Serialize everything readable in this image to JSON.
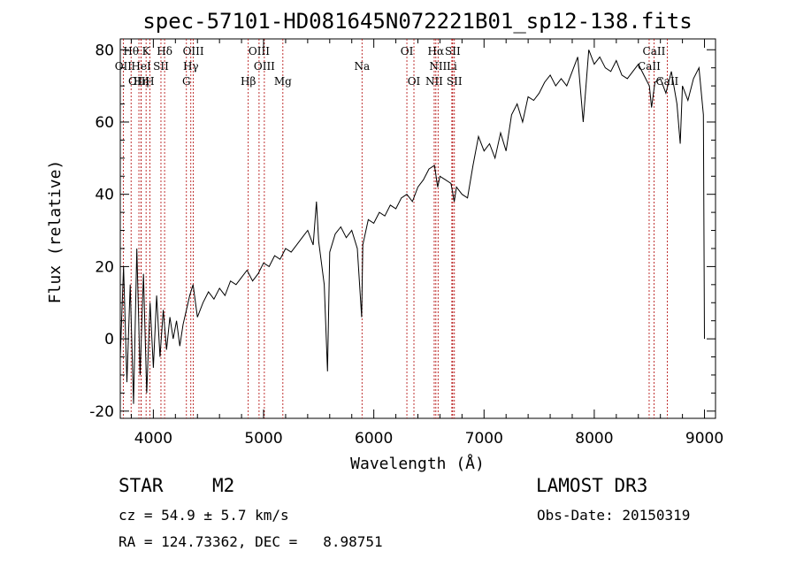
{
  "chart_data": {
    "type": "line",
    "title": "spec-57101-HD081645N072221B01_sp12-138.fits",
    "xlabel": "Wavelength (Å)",
    "ylabel": "Flux (relative)",
    "xlim": [
      3700,
      9100
    ],
    "ylim": [
      -22,
      83
    ],
    "xticks": [
      4000,
      5000,
      6000,
      7000,
      8000,
      9000
    ],
    "yticks": [
      -20,
      0,
      20,
      40,
      60,
      80
    ],
    "series": [
      {
        "name": "flux",
        "x": [
          3700,
          3730,
          3760,
          3790,
          3820,
          3850,
          3880,
          3910,
          3940,
          3970,
          4000,
          4030,
          4060,
          4090,
          4120,
          4150,
          4180,
          4210,
          4240,
          4270,
          4300,
          4330,
          4360,
          4400,
          4450,
          4500,
          4550,
          4600,
          4650,
          4700,
          4750,
          4800,
          4850,
          4900,
          4950,
          5000,
          5050,
          5100,
          5150,
          5200,
          5250,
          5300,
          5350,
          5400,
          5450,
          5480,
          5500,
          5550,
          5580,
          5600,
          5650,
          5700,
          5750,
          5800,
          5850,
          5890,
          5900,
          5950,
          6000,
          6050,
          6100,
          6150,
          6200,
          6250,
          6300,
          6350,
          6400,
          6450,
          6500,
          6550,
          6580,
          6600,
          6650,
          6700,
          6730,
          6750,
          6800,
          6850,
          6900,
          6950,
          7000,
          7050,
          7100,
          7150,
          7200,
          7250,
          7300,
          7350,
          7400,
          7450,
          7500,
          7550,
          7600,
          7650,
          7700,
          7750,
          7800,
          7850,
          7900,
          7950,
          8000,
          8050,
          8100,
          8150,
          8200,
          8250,
          8300,
          8350,
          8400,
          8450,
          8500,
          8520,
          8550,
          8600,
          8650,
          8700,
          8750,
          8780,
          8800,
          8850,
          8900,
          8950,
          8990,
          9000
        ],
        "y": [
          -5,
          20,
          -12,
          15,
          -18,
          25,
          -10,
          18,
          -15,
          10,
          -8,
          12,
          -5,
          8,
          -3,
          6,
          0,
          5,
          -2,
          4,
          8,
          12,
          15,
          6,
          10,
          13,
          11,
          14,
          12,
          16,
          15,
          17,
          19,
          16,
          18,
          21,
          20,
          23,
          22,
          25,
          24,
          26,
          28,
          30,
          26,
          38,
          27,
          15,
          -9,
          24,
          29,
          31,
          28,
          30,
          25,
          6,
          26,
          33,
          32,
          35,
          34,
          37,
          36,
          39,
          40,
          38,
          42,
          44,
          47,
          48,
          42,
          45,
          44,
          43,
          38,
          42,
          40,
          39,
          48,
          56,
          52,
          54,
          50,
          57,
          52,
          62,
          65,
          60,
          67,
          66,
          68,
          71,
          73,
          70,
          72,
          70,
          74,
          78,
          60,
          80,
          76,
          78,
          75,
          74,
          77,
          73,
          72,
          74,
          76,
          73,
          70,
          64,
          71,
          72,
          68,
          74,
          65,
          54,
          70,
          66,
          72,
          75,
          62,
          0
        ]
      }
    ],
    "spectral_lines": [
      {
        "label": "Hθ",
        "wavelength": 3798,
        "row": 0
      },
      {
        "label": "K",
        "wavelength": 3934,
        "row": 0
      },
      {
        "label": "Hδ",
        "wavelength": 4102,
        "row": 0
      },
      {
        "label": "OIII",
        "wavelength": 4363,
        "row": 0
      },
      {
        "label": "OIII",
        "wavelength": 4959,
        "row": 0
      },
      {
        "label": "OI",
        "wavelength": 6300,
        "row": 0
      },
      {
        "label": "Hα",
        "wavelength": 6563,
        "row": 0
      },
      {
        "label": "SII",
        "wavelength": 6716,
        "row": 0
      },
      {
        "label": "CaII",
        "wavelength": 8542,
        "row": 0
      },
      {
        "label": "OII",
        "wavelength": 3727,
        "row": 1
      },
      {
        "label": "HeI",
        "wavelength": 3889,
        "row": 1
      },
      {
        "label": "SII",
        "wavelength": 4069,
        "row": 1
      },
      {
        "label": "Hγ",
        "wavelength": 4340,
        "row": 1
      },
      {
        "label": "OIII",
        "wavelength": 5007,
        "row": 1
      },
      {
        "label": "Na",
        "wavelength": 5893,
        "row": 1
      },
      {
        "label": "NII",
        "wavelength": 6583,
        "row": 1
      },
      {
        "label": "Li",
        "wavelength": 6708,
        "row": 1
      },
      {
        "label": "CaII",
        "wavelength": 8498,
        "row": 1
      },
      {
        "label": "OIII",
        "wavelength": 3869,
        "row": 2
      },
      {
        "label": "Hη",
        "wavelength": 3889,
        "row": 2
      },
      {
        "label": "H",
        "wavelength": 3968,
        "row": 2
      },
      {
        "label": "G",
        "wavelength": 4300,
        "row": 2
      },
      {
        "label": "Hβ",
        "wavelength": 4861,
        "row": 2
      },
      {
        "label": "Mg",
        "wavelength": 5175,
        "row": 2
      },
      {
        "label": "OI",
        "wavelength": 6364,
        "row": 2
      },
      {
        "label": "NII",
        "wavelength": 6548,
        "row": 2
      },
      {
        "label": "SII",
        "wavelength": 6731,
        "row": 2
      },
      {
        "label": "CaII",
        "wavelength": 8662,
        "row": 2
      }
    ]
  },
  "info": {
    "object_class": "STAR",
    "subclass": "M2",
    "survey": "LAMOST DR3",
    "redshift": "cz = 54.9 ± 5.7 km/s",
    "obs_date": "Obs-Date: 20150319",
    "coords": "RA = 124.73362, DEC =   8.98751"
  }
}
